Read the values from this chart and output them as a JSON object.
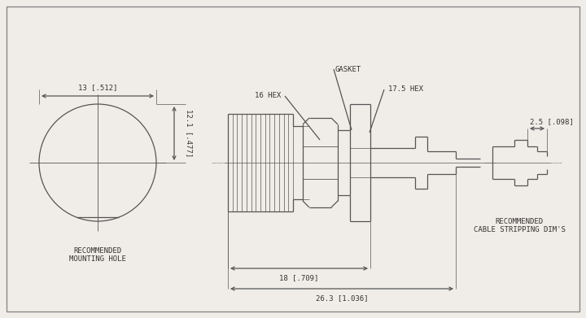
{
  "bg_color": "#f0ede8",
  "line_color": "#555555",
  "text_color": "#333333",
  "annotations": {
    "gasket": "GASKET",
    "hex16": "16 HEX",
    "hex175": "17.5 HEX",
    "dim18": "18 [.709]",
    "dim263": "26.3 [1.036]",
    "dim13": "13 [.512]",
    "dim121": "12.1 [.477]",
    "dim25": "2.5 [.098]",
    "mount_label": "RECOMMENDED\nMOUNTING HOLE",
    "cable_label": "RECOMMENDED\nCABLE STRIPPING DIM'S"
  }
}
